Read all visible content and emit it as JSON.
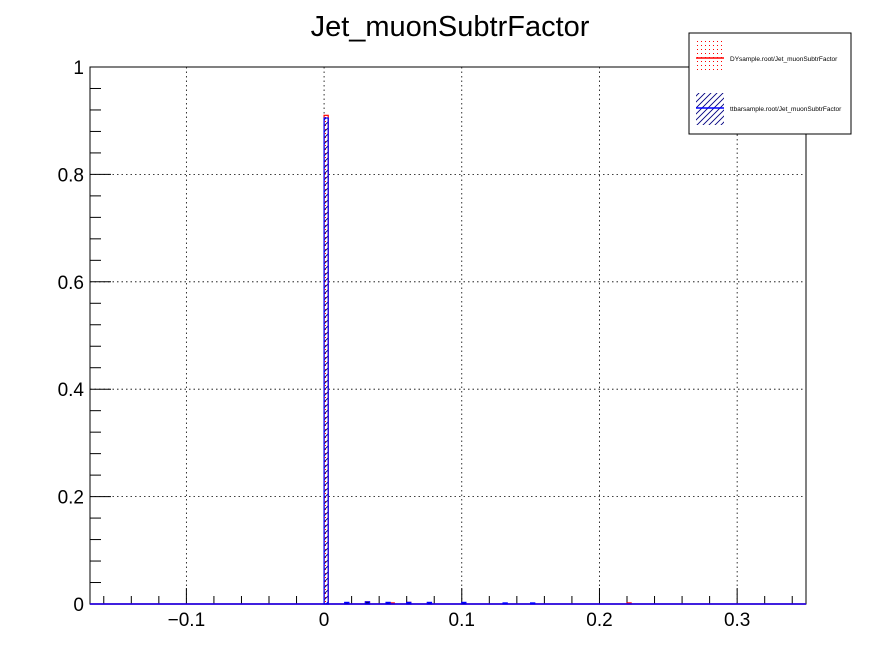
{
  "chart_data": {
    "type": "bar",
    "title": "Jet_muonSubtrFactor",
    "xlabel": "",
    "ylabel": "",
    "xlim": [
      -0.17,
      0.35
    ],
    "ylim": [
      0,
      1
    ],
    "x_ticks": [
      -0.1,
      0,
      0.1,
      0.2,
      0.3
    ],
    "x_tick_labels": [
      "−0.1",
      "0",
      "0.1",
      "0.2",
      "0.3"
    ],
    "y_ticks": [
      0,
      0.2,
      0.4,
      0.6,
      0.8,
      1
    ],
    "y_tick_labels": [
      "0",
      "0.2",
      "0.4",
      "0.6",
      "0.8",
      "1"
    ],
    "grid": true,
    "legend_position": "top-right",
    "bin_width": 0.003,
    "series": [
      {
        "name": "DYsample.root/Jet_muonSubtrFactor",
        "color": "#ff0000",
        "fill": "red-dotted",
        "bins": [
          {
            "x": 0.0,
            "y": 0.91
          },
          {
            "x": 0.015,
            "y": 0.002
          },
          {
            "x": 0.03,
            "y": 0.004
          },
          {
            "x": 0.048,
            "y": 0.002
          },
          {
            "x": 0.06,
            "y": 0.003
          },
          {
            "x": 0.075,
            "y": 0.002
          },
          {
            "x": 0.1,
            "y": 0.002
          },
          {
            "x": 0.22,
            "y": 0.002
          }
        ]
      },
      {
        "name": "ttbarsample.root/Jet_muonSubtrFactor",
        "color": "#0000ff",
        "fill": "black-hatched",
        "bins": [
          {
            "x": 0.0,
            "y": 0.905
          },
          {
            "x": 0.015,
            "y": 0.003
          },
          {
            "x": 0.03,
            "y": 0.004
          },
          {
            "x": 0.045,
            "y": 0.003
          },
          {
            "x": 0.06,
            "y": 0.003
          },
          {
            "x": 0.075,
            "y": 0.003
          },
          {
            "x": 0.1,
            "y": 0.003
          },
          {
            "x": 0.13,
            "y": 0.002
          },
          {
            "x": 0.15,
            "y": 0.002
          }
        ]
      }
    ]
  }
}
